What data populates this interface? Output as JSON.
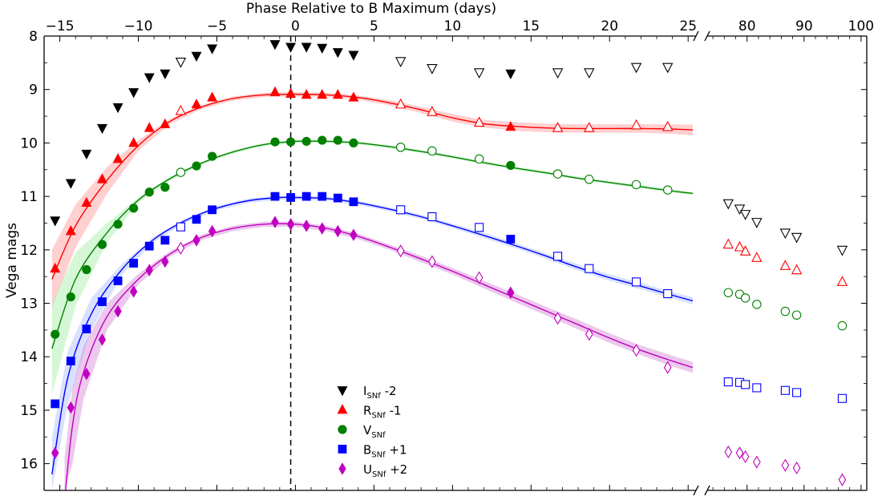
{
  "chart_data": {
    "type": "scatter",
    "title": "",
    "xlabel": "Phase Relative to B Maximum (days)",
    "ylabel": "Vega mags",
    "x_axis_position": "top",
    "y_inverted": true,
    "ylim": [
      8,
      16.5
    ],
    "x_panels": [
      {
        "xlim": [
          -16,
          25.5
        ],
        "ticks": [
          -15,
          -10,
          -5,
          0,
          5,
          10,
          15,
          20,
          25
        ]
      },
      {
        "xlim": [
          73,
          101
        ],
        "ticks": [
          80,
          90,
          100
        ]
      }
    ],
    "y_ticks": [
      8,
      9,
      10,
      11,
      12,
      13,
      14,
      15,
      16
    ],
    "vline_x": -0.3,
    "legend_position": "bottom-center",
    "series": [
      {
        "key": "I",
        "name": "I",
        "sub": "SNf",
        "offset": " -2",
        "color": "#000000",
        "marker": "triangle-down",
        "x": [
          -15.3,
          -14.3,
          -13.3,
          -12.3,
          -11.3,
          -10.3,
          -9.3,
          -8.3,
          -7.3,
          -6.3,
          -5.3,
          -1.3,
          -0.3,
          0.7,
          1.7,
          2.7,
          3.7,
          6.7,
          8.7,
          11.7,
          13.7,
          16.7,
          18.7,
          21.7,
          23.7,
          76.7,
          78.7,
          79.7,
          81.7,
          86.7,
          88.7,
          96.7
        ],
        "y": [
          11.45,
          10.75,
          10.2,
          9.72,
          9.33,
          9.05,
          8.77,
          8.7,
          8.48,
          8.37,
          8.23,
          8.15,
          8.2,
          8.2,
          8.22,
          8.3,
          8.35,
          8.47,
          8.6,
          8.68,
          8.7,
          8.68,
          8.68,
          8.58,
          8.58,
          11.13,
          11.23,
          11.33,
          11.48,
          11.68,
          11.76,
          12.0
        ],
        "open": [
          false,
          false,
          false,
          false,
          false,
          false,
          false,
          false,
          true,
          false,
          false,
          false,
          false,
          false,
          false,
          false,
          false,
          true,
          true,
          true,
          false,
          true,
          true,
          true,
          true,
          true,
          true,
          true,
          true,
          true,
          true,
          true
        ]
      },
      {
        "key": "R",
        "name": "R",
        "sub": "SNf",
        "offset": " -1",
        "color": "#ff0000",
        "marker": "triangle-up",
        "x": [
          -15.3,
          -14.3,
          -13.3,
          -12.3,
          -11.3,
          -10.3,
          -9.3,
          -8.3,
          -7.3,
          -6.3,
          -5.3,
          -1.3,
          -0.3,
          0.7,
          1.7,
          2.7,
          3.7,
          6.7,
          8.7,
          11.7,
          13.7,
          16.7,
          18.7,
          21.7,
          23.7,
          76.7,
          78.7,
          79.7,
          81.7,
          86.7,
          88.7,
          96.7
        ],
        "y": [
          12.35,
          11.65,
          11.12,
          10.68,
          10.3,
          10.0,
          9.72,
          9.65,
          9.4,
          9.28,
          9.15,
          9.05,
          9.08,
          9.1,
          9.1,
          9.1,
          9.15,
          9.28,
          9.42,
          9.62,
          9.7,
          9.72,
          9.72,
          9.67,
          9.7,
          11.9,
          11.95,
          12.03,
          12.15,
          12.3,
          12.38,
          12.6
        ],
        "open": [
          false,
          false,
          false,
          false,
          false,
          false,
          false,
          false,
          true,
          false,
          false,
          false,
          false,
          false,
          false,
          false,
          false,
          true,
          true,
          true,
          false,
          true,
          true,
          true,
          true,
          true,
          true,
          true,
          true,
          true,
          true,
          true
        ]
      },
      {
        "key": "V",
        "name": "V",
        "sub": "SNf",
        "offset": "",
        "color": "#008000",
        "marker": "circle",
        "x": [
          -15.3,
          -14.3,
          -13.3,
          -12.3,
          -11.3,
          -10.3,
          -9.3,
          -8.3,
          -7.3,
          -6.3,
          -5.3,
          -1.3,
          -0.3,
          0.7,
          1.7,
          2.7,
          3.7,
          6.7,
          8.7,
          11.7,
          13.7,
          16.7,
          18.7,
          21.7,
          23.7,
          76.7,
          78.7,
          79.7,
          81.7,
          86.7,
          88.7,
          96.7
        ],
        "y": [
          13.58,
          12.88,
          12.37,
          11.9,
          11.52,
          11.22,
          10.92,
          10.83,
          10.55,
          10.43,
          10.25,
          9.98,
          9.98,
          9.97,
          9.95,
          9.95,
          10.0,
          10.08,
          10.15,
          10.3,
          10.42,
          10.58,
          10.68,
          10.78,
          10.88,
          12.8,
          12.83,
          12.9,
          13.02,
          13.15,
          13.22,
          13.42
        ],
        "open": [
          false,
          false,
          false,
          false,
          false,
          false,
          false,
          false,
          true,
          false,
          false,
          false,
          false,
          false,
          false,
          false,
          false,
          true,
          true,
          true,
          false,
          true,
          true,
          true,
          true,
          true,
          true,
          true,
          true,
          true,
          true,
          true
        ]
      },
      {
        "key": "B",
        "name": "B",
        "sub": "SNf",
        "offset": " +1",
        "color": "#0000ff",
        "marker": "square",
        "x": [
          -15.3,
          -14.3,
          -13.3,
          -12.3,
          -11.3,
          -10.3,
          -9.3,
          -8.3,
          -7.3,
          -6.3,
          -5.3,
          -1.3,
          -0.3,
          0.7,
          1.7,
          2.7,
          3.7,
          6.7,
          8.7,
          11.7,
          13.7,
          16.7,
          18.7,
          21.7,
          23.7,
          76.7,
          78.7,
          79.7,
          81.7,
          86.7,
          88.7,
          96.7
        ],
        "y": [
          14.88,
          14.08,
          13.48,
          12.97,
          12.58,
          12.25,
          11.93,
          11.82,
          11.57,
          11.43,
          11.25,
          11.0,
          11.02,
          11.0,
          11.0,
          11.03,
          11.1,
          11.25,
          11.38,
          11.58,
          11.8,
          12.12,
          12.35,
          12.6,
          12.82,
          14.47,
          14.48,
          14.52,
          14.58,
          14.63,
          14.67,
          14.78
        ],
        "open": [
          false,
          false,
          false,
          false,
          false,
          false,
          false,
          false,
          true,
          false,
          false,
          false,
          false,
          false,
          false,
          false,
          false,
          true,
          true,
          true,
          false,
          true,
          true,
          true,
          true,
          true,
          true,
          true,
          true,
          true,
          true,
          true
        ]
      },
      {
        "key": "U",
        "name": "U",
        "sub": "SNf",
        "offset": " +2",
        "color": "#c000c0",
        "marker": "diamond",
        "x": [
          -15.3,
          -14.3,
          -13.3,
          -12.3,
          -11.3,
          -10.3,
          -9.3,
          -8.3,
          -7.3,
          -6.3,
          -5.3,
          -1.3,
          -0.3,
          0.7,
          1.7,
          2.7,
          3.7,
          6.7,
          8.7,
          11.7,
          13.7,
          16.7,
          18.7,
          21.7,
          23.7,
          76.7,
          78.7,
          79.7,
          81.7,
          86.7,
          88.7,
          96.7
        ],
        "y": [
          15.8,
          14.95,
          14.32,
          13.68,
          13.15,
          12.78,
          12.38,
          12.22,
          11.97,
          11.82,
          11.65,
          11.48,
          11.52,
          11.55,
          11.6,
          11.65,
          11.72,
          12.02,
          12.22,
          12.52,
          12.8,
          13.28,
          13.58,
          13.88,
          14.2,
          15.78,
          15.8,
          15.87,
          15.97,
          16.03,
          16.08,
          16.3
        ],
        "open": [
          false,
          false,
          false,
          false,
          false,
          false,
          false,
          false,
          true,
          false,
          false,
          false,
          false,
          false,
          false,
          false,
          false,
          true,
          true,
          true,
          false,
          true,
          true,
          true,
          true,
          true,
          true,
          true,
          true,
          true,
          true,
          true
        ]
      }
    ],
    "fit_curves": [
      {
        "key": "R",
        "color": "#ff0000",
        "band_color": "#ffaaaa",
        "x": [
          -15.5,
          -14,
          -12,
          -10,
          -8,
          -6,
          -4,
          -2,
          0,
          2,
          4,
          6,
          8,
          10,
          12,
          14,
          16,
          18,
          20,
          22,
          24,
          25.5
        ],
        "y": [
          12.55,
          11.55,
          10.7,
          10.05,
          9.6,
          9.33,
          9.17,
          9.1,
          9.09,
          9.1,
          9.15,
          9.25,
          9.38,
          9.53,
          9.64,
          9.69,
          9.72,
          9.73,
          9.73,
          9.73,
          9.74,
          9.76
        ],
        "band": [
          0.55,
          0.4,
          0.25,
          0.1,
          0.05,
          0.04,
          0.04,
          0.04,
          0.04,
          0.04,
          0.04,
          0.05,
          0.06,
          0.07,
          0.07,
          0.08,
          0.08,
          0.08,
          0.08,
          0.08,
          0.09,
          0.1
        ]
      },
      {
        "key": "V",
        "color": "#008000",
        "band_color": "#b4f0b4",
        "x": [
          -15.5,
          -14,
          -12,
          -10,
          -8,
          -6,
          -4,
          -2,
          0,
          2,
          4,
          6,
          8,
          10,
          12,
          14,
          16,
          18,
          20,
          22,
          24,
          25.5
        ],
        "y": [
          13.85,
          12.55,
          11.68,
          11.07,
          10.67,
          10.38,
          10.17,
          10.03,
          9.97,
          9.97,
          10.0,
          10.07,
          10.16,
          10.26,
          10.37,
          10.47,
          10.56,
          10.66,
          10.74,
          10.82,
          10.9,
          10.95
        ],
        "band": [
          0.85,
          0.5,
          0.18,
          0.05,
          0.04,
          0.03,
          0.03,
          0.03,
          0.03,
          0.03,
          0.03,
          0.03,
          0.03,
          0.03,
          0.03,
          0.03,
          0.03,
          0.03,
          0.03,
          0.03,
          0.03,
          0.03
        ]
      },
      {
        "key": "B",
        "color": "#0000ff",
        "band_color": "#b8c8ff",
        "x": [
          -15.5,
          -14.5,
          -13,
          -11,
          -9,
          -7,
          -5,
          -3,
          -1,
          0,
          2,
          4,
          6,
          8,
          10,
          12,
          14,
          16,
          18,
          20,
          22,
          24,
          25.5
        ],
        "y": [
          16.2,
          14.4,
          13.2,
          12.35,
          11.8,
          11.45,
          11.22,
          11.08,
          11.02,
          11.02,
          11.04,
          11.12,
          11.24,
          11.38,
          11.55,
          11.73,
          11.92,
          12.12,
          12.33,
          12.52,
          12.68,
          12.85,
          12.97
        ],
        "band": [
          0.7,
          0.5,
          0.3,
          0.1,
          0.05,
          0.04,
          0.04,
          0.04,
          0.04,
          0.04,
          0.04,
          0.04,
          0.04,
          0.04,
          0.04,
          0.05,
          0.05,
          0.05,
          0.06,
          0.06,
          0.06,
          0.06,
          0.07
        ]
      },
      {
        "key": "U",
        "color": "#c000c0",
        "band_color": "#dc9adc",
        "x": [
          -14.7,
          -14.2,
          -13.5,
          -12,
          -10,
          -8,
          -6,
          -4,
          -2,
          0,
          2,
          4,
          6,
          8,
          10,
          12,
          14,
          16,
          18,
          20,
          22,
          24,
          25.5
        ],
        "y": [
          16.7,
          15.3,
          14.3,
          13.25,
          12.55,
          12.08,
          11.77,
          11.6,
          11.52,
          11.52,
          11.6,
          11.75,
          11.95,
          12.17,
          12.4,
          12.65,
          12.9,
          13.15,
          13.4,
          13.65,
          13.88,
          14.08,
          14.22
        ],
        "band": [
          0.8,
          0.7,
          0.5,
          0.25,
          0.1,
          0.05,
          0.05,
          0.05,
          0.05,
          0.05,
          0.05,
          0.05,
          0.05,
          0.06,
          0.06,
          0.07,
          0.08,
          0.08,
          0.09,
          0.09,
          0.09,
          0.1,
          0.1
        ]
      }
    ]
  }
}
